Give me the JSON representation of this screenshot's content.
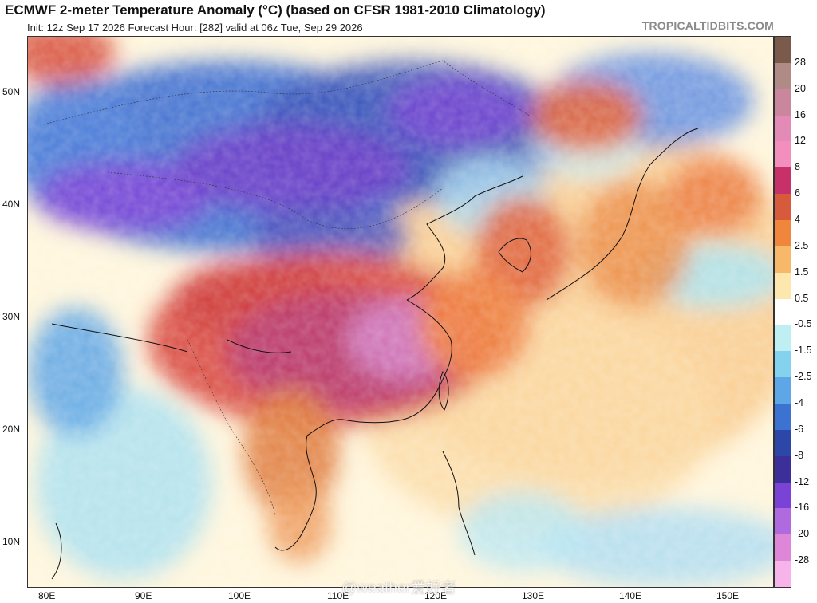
{
  "header": {
    "title": "ECMWF 2-meter Temperature Anomaly (°C) (based on CFSR 1981-2010 Climatology)",
    "subtitle": "Init: 12z Sep 17 2026   Forecast Hour: [282]   valid at 06z Tue, Sep 29 2026",
    "site": "TROPICALTIDBITS.COM"
  },
  "axes": {
    "lat_labels": [
      "50N",
      "40N",
      "30N",
      "20N",
      "10N"
    ],
    "lon_labels": [
      "80E",
      "90E",
      "100E",
      "110E",
      "120E",
      "130E",
      "140E",
      "150E"
    ]
  },
  "colorbar": {
    "labels": [
      "28",
      "20",
      "16",
      "12",
      "8",
      "6",
      "4",
      "2.5",
      "1.5",
      "0.5",
      "-0.5",
      "-1.5",
      "-2.5",
      "-4",
      "-6",
      "-8",
      "-12",
      "-16",
      "-20",
      "-28"
    ],
    "colors": [
      "#7a5a4a",
      "#b08a84",
      "#c9869d",
      "#e38ab7",
      "#f38fbd",
      "#c8306a",
      "#d85a3d",
      "#f0863c",
      "#f7b86a",
      "#fde7ad",
      "#ffffff",
      "#bfeff3",
      "#84d3ee",
      "#5ea7e6",
      "#3c72d2",
      "#2c47a8",
      "#3d2f9a",
      "#7a43d6",
      "#b06ae0",
      "#de86d8",
      "#f6b4ea"
    ]
  },
  "watermark": "@weather爱好者"
}
